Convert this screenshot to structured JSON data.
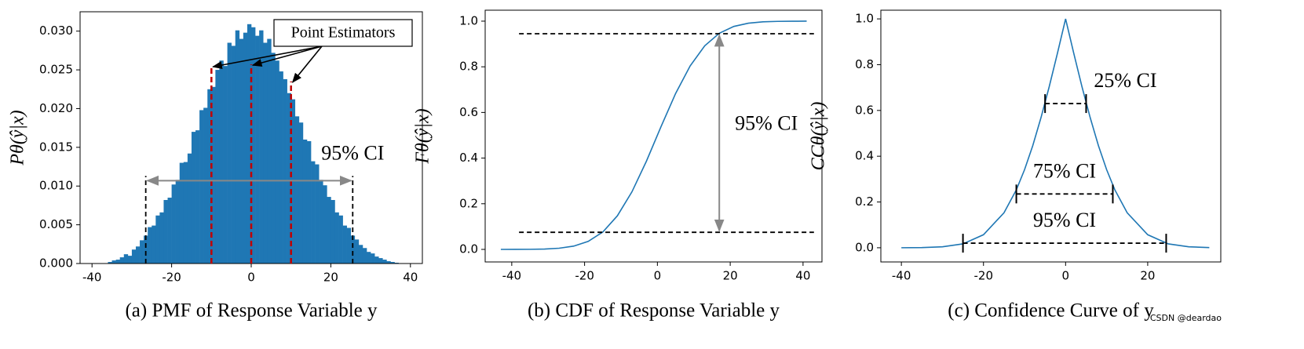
{
  "chart_data": [
    {
      "type": "histogram",
      "caption": "(a) PMF of Response Variable y",
      "ylabel": "Pθ(ŷ|x)",
      "color": "#1f77b4",
      "bins": [
        -36,
        -35,
        -34,
        -33,
        -32,
        -31,
        -30,
        -29,
        -28,
        -27,
        -26,
        -25,
        -24,
        -23,
        -22,
        -21,
        -20,
        -19,
        -18,
        -17,
        -16,
        -15,
        -14,
        -13,
        -12,
        -11,
        -10,
        -9,
        -8,
        -7,
        -6,
        -5,
        -4,
        -3,
        -2,
        -1,
        0,
        1,
        2,
        3,
        4,
        5,
        6,
        7,
        8,
        9,
        10,
        11,
        12,
        13,
        14,
        15,
        16,
        17,
        18,
        19,
        20,
        21,
        22,
        23,
        24,
        25,
        26,
        27,
        28,
        29,
        30,
        31,
        32,
        33,
        34,
        35,
        36,
        37
      ],
      "values": [
        0.0002,
        0.0004,
        0.0005,
        0.0008,
        0.0012,
        0.001,
        0.0018,
        0.0022,
        0.003,
        0.0036,
        0.0047,
        0.0049,
        0.0062,
        0.0066,
        0.0082,
        0.0085,
        0.0102,
        0.0108,
        0.013,
        0.0131,
        0.0142,
        0.017,
        0.0172,
        0.0198,
        0.0201,
        0.0225,
        0.0228,
        0.025,
        0.0262,
        0.0255,
        0.0285,
        0.0281,
        0.0301,
        0.029,
        0.0298,
        0.0309,
        0.0305,
        0.0294,
        0.0301,
        0.0285,
        0.029,
        0.0272,
        0.0262,
        0.0248,
        0.0238,
        0.022,
        0.0212,
        0.019,
        0.0182,
        0.016,
        0.0158,
        0.0132,
        0.0128,
        0.0108,
        0.0101,
        0.0086,
        0.0082,
        0.0066,
        0.0062,
        0.0049,
        0.0046,
        0.0036,
        0.0031,
        0.0024,
        0.002,
        0.0015,
        0.0013,
        0.0009,
        0.0007,
        0.0005,
        0.0003,
        0.0002,
        0.0001
      ],
      "xlim": [
        -43,
        43
      ],
      "xticks": [
        -40,
        -20,
        0,
        20,
        40
      ],
      "ylim": [
        0,
        0.0325
      ],
      "yticks": [
        {
          "value": 0,
          "label": "0.000"
        },
        {
          "value": 0.005,
          "label": "0.005"
        },
        {
          "value": 0.01,
          "label": "0.010"
        },
        {
          "value": 0.015,
          "label": "0.015"
        },
        {
          "value": 0.02,
          "label": "0.020"
        },
        {
          "value": 0.025,
          "label": "0.025"
        },
        {
          "value": 0.03,
          "label": "0.030"
        }
      ],
      "estimators": {
        "label": "Point Estimators",
        "color": "#c00000",
        "x": [
          -10,
          0,
          10
        ],
        "y": [
          0.0255,
          0.0257,
          0.0235
        ]
      },
      "interval": {
        "label": "95% CI",
        "x": [
          -26.5,
          25.5
        ],
        "y": 0.0107,
        "height": 0.0113
      }
    },
    {
      "type": "line",
      "caption": "(b) CDF of Response Variable y",
      "ylabel": "Fθ(ŷ|x)",
      "color": "#1f77b4",
      "x": [
        -43,
        -39,
        -35,
        -31,
        -27,
        -23,
        -19,
        -15,
        -11,
        -7,
        -3,
        1,
        5,
        9,
        13,
        17,
        21,
        25,
        29,
        33,
        37,
        41
      ],
      "values": [
        0.0,
        0.0001,
        0.0004,
        0.0016,
        0.0051,
        0.0143,
        0.035,
        0.076,
        0.147,
        0.252,
        0.387,
        0.538,
        0.683,
        0.804,
        0.892,
        0.947,
        0.977,
        0.991,
        0.997,
        0.999,
        0.9997,
        1.0
      ],
      "xlim": [
        -47.3,
        45.2
      ],
      "xticks": [
        -40,
        -20,
        0,
        20,
        40
      ],
      "ylim": [
        -0.055,
        1.048
      ],
      "yticks": [
        {
          "value": 0,
          "label": "0.0"
        },
        {
          "value": 0.2,
          "label": "0.2"
        },
        {
          "value": 0.4,
          "label": "0.4"
        },
        {
          "value": 0.6,
          "label": "0.6"
        },
        {
          "value": 0.8,
          "label": "0.8"
        },
        {
          "value": 1,
          "label": "1.0"
        }
      ],
      "interval": {
        "label": "95% CI",
        "y": [
          0.075,
          0.945
        ],
        "x": 17,
        "line_x": [
          -38,
          43
        ]
      }
    },
    {
      "type": "line",
      "caption": "(c) Confidence Curve of y",
      "ylabel": "CCθ(ŷ|x)",
      "color": "#1f77b4",
      "x": [
        -40,
        -35,
        -30,
        -25,
        -20,
        -15,
        -12,
        -10,
        -8,
        -6,
        -4,
        -2,
        0,
        2,
        4,
        6,
        8,
        10,
        12,
        15,
        20,
        25,
        30,
        35
      ],
      "values": [
        0.0001,
        0.0009,
        0.0042,
        0.017,
        0.057,
        0.153,
        0.253,
        0.341,
        0.446,
        0.568,
        0.703,
        0.849,
        1.0,
        0.849,
        0.703,
        0.568,
        0.446,
        0.341,
        0.253,
        0.153,
        0.057,
        0.017,
        0.0042,
        0.0009
      ],
      "xlim": [
        -45,
        37.8
      ],
      "xticks": [
        -40,
        -20,
        0,
        20
      ],
      "ylim": [
        -0.062,
        1.038
      ],
      "yticks": [
        {
          "value": 0,
          "label": "0.0"
        },
        {
          "value": 0.2,
          "label": "0.2"
        },
        {
          "value": 0.4,
          "label": "0.4"
        },
        {
          "value": 0.6,
          "label": "0.6"
        },
        {
          "value": 0.8,
          "label": "0.8"
        },
        {
          "value": 1,
          "label": "1.0"
        }
      ],
      "intervals": [
        {
          "label": "25% CI",
          "x": [
            -5,
            5
          ],
          "y": 0.63
        },
        {
          "label": "75% CI",
          "x": [
            -12,
            11.5
          ],
          "y": 0.235
        },
        {
          "label": "95% CI",
          "x": [
            -25,
            24.5
          ],
          "y": 0.02
        }
      ],
      "watermark": "CSDN @deardao"
    }
  ]
}
